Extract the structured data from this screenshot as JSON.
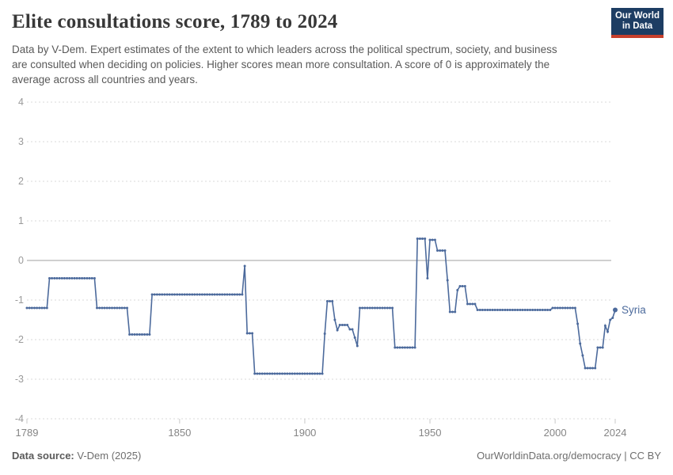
{
  "header": {
    "title": "Elite consultations score, 1789 to 2024",
    "subtitle": "Data by V-Dem. Expert estimates of the extent to which leaders across the political spectrum, society, and business are consulted when deciding on policies. Higher scores mean more consultation. A score of 0 is approximately the average across all countries and years.",
    "logo": {
      "line1": "Our World",
      "line2": "in Data",
      "bg_color": "#1d3d63",
      "accent_color": "#c7402d"
    }
  },
  "footer": {
    "source_label": "Data source:",
    "source_value": " V-Dem (2025)",
    "credit": "OurWorldinData.org/democracy | CC BY"
  },
  "chart_data": {
    "type": "line",
    "title": "Elite consultations score, 1789 to 2024",
    "entity": "Syria",
    "series": [
      {
        "name": "Syria",
        "segments_note": "each segment = [first_year, last_year, value], value constant across segment; consecutive years are connected directly",
        "segments": [
          [
            1789,
            1797,
            -1.2
          ],
          [
            1798,
            1816,
            -0.45
          ],
          [
            1817,
            1829,
            -1.2
          ],
          [
            1830,
            1838,
            -1.87
          ],
          [
            1839,
            1875,
            -0.86
          ],
          [
            1876,
            1876,
            -0.14
          ],
          [
            1877,
            1879,
            -1.84
          ],
          [
            1880,
            1907,
            -2.86
          ],
          [
            1908,
            1908,
            -1.85
          ],
          [
            1909,
            1911,
            -1.03
          ],
          [
            1912,
            1912,
            -1.5
          ],
          [
            1913,
            1913,
            -1.76
          ],
          [
            1914,
            1917,
            -1.63
          ],
          [
            1918,
            1919,
            -1.74
          ],
          [
            1920,
            1920,
            -1.95
          ],
          [
            1921,
            1921,
            -2.16
          ],
          [
            1922,
            1935,
            -1.2
          ],
          [
            1936,
            1944,
            -2.2
          ],
          [
            1945,
            1948,
            0.55
          ],
          [
            1949,
            1949,
            -0.45
          ],
          [
            1950,
            1952,
            0.52
          ],
          [
            1953,
            1956,
            0.25
          ],
          [
            1957,
            1957,
            -0.5
          ],
          [
            1958,
            1960,
            -1.3
          ],
          [
            1961,
            1961,
            -0.75
          ],
          [
            1962,
            1964,
            -0.65
          ],
          [
            1965,
            1968,
            -1.1
          ],
          [
            1969,
            1998,
            -1.25
          ],
          [
            1999,
            2008,
            -1.2
          ],
          [
            2009,
            2009,
            -1.6
          ],
          [
            2010,
            2010,
            -2.1
          ],
          [
            2011,
            2011,
            -2.4
          ],
          [
            2012,
            2016,
            -2.72
          ],
          [
            2017,
            2019,
            -2.2
          ],
          [
            2020,
            2020,
            -1.65
          ],
          [
            2021,
            2021,
            -1.8
          ],
          [
            2022,
            2022,
            -1.5
          ],
          [
            2023,
            2023,
            -1.45
          ],
          [
            2024,
            2024,
            -1.25
          ]
        ]
      }
    ],
    "xlim": [
      1789,
      2024
    ],
    "ylim": [
      -4,
      4
    ],
    "x_ticks": [
      1789,
      1850,
      1900,
      1950,
      2000,
      2024
    ],
    "y_ticks": [
      4,
      3,
      2,
      1,
      0,
      -1,
      -2,
      -3,
      -4
    ],
    "grid": true,
    "legend_position": "end-of-line-label",
    "line_color": "#4c6a9c",
    "grid_color": "#d9d9d9",
    "zero_line_color": "#a1a1a1",
    "axis_label_color": "#9a9a9a",
    "x_label_color": "#858585"
  }
}
